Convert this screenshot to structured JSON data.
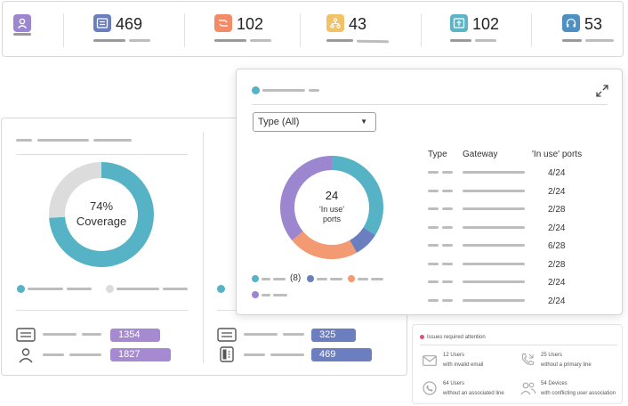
{
  "stats": [
    {
      "icon": "user-icon",
      "value": "",
      "color": "#9b86cf"
    },
    {
      "icon": "id-card-icon",
      "value": "469",
      "color": "#6b7fc0"
    },
    {
      "icon": "routing-icon",
      "value": "102",
      "color": "#f28b66"
    },
    {
      "icon": "network-icon",
      "value": "43",
      "color": "#f2c267"
    },
    {
      "icon": "upload-box-icon",
      "value": "102",
      "color": "#5bb5c7"
    },
    {
      "icon": "headset-icon",
      "value": "53",
      "color": "#4e90c2"
    }
  ],
  "coverage": {
    "percent_label": "74%",
    "label": "Coverage",
    "percent": 74,
    "colors": {
      "covered": "#56b2c5",
      "uncovered": "#dcdcdc"
    }
  },
  "left_pills": [
    {
      "icon": "id-card-icon",
      "value": "1354",
      "color": "#a58ad2"
    },
    {
      "icon": "person-icon",
      "value": "1827",
      "color": "#a58ad2"
    }
  ],
  "right_pills": [
    {
      "icon": "id-card-icon",
      "value": "325",
      "color": "#6b7fc0"
    },
    {
      "icon": "desk-phone-icon",
      "value": "469",
      "color": "#6b7fc0"
    }
  ],
  "popup": {
    "type_select": "Type (All)",
    "donut": {
      "count": "24",
      "line1": "'In use'",
      "line2": "ports",
      "segments": [
        {
          "value": 34,
          "color": "#56b2c5"
        },
        {
          "value": 8,
          "color": "#6b7fc0"
        },
        {
          "value": 22,
          "color": "#f49a72"
        },
        {
          "value": 36,
          "color": "#9b86cf"
        }
      ]
    },
    "legend": [
      {
        "color": "#56b2c5",
        "value": "(8)"
      },
      {
        "color": "#6b7fc0",
        "value": ""
      },
      {
        "color": "#f49a72",
        "value": ""
      },
      {
        "color": "#9b86cf",
        "value": ""
      }
    ],
    "table": {
      "headers": [
        "Type",
        "Gateway",
        "'In use' ports"
      ],
      "rows": [
        "4/24",
        "2/24",
        "2/28",
        "2/24",
        "6/28",
        "2/28",
        "2/24",
        "2/24"
      ]
    }
  },
  "issues": {
    "title": "Issues required attention",
    "items": [
      {
        "icon": "mail-icon",
        "line1": "12 Users",
        "line2": "with invalid email"
      },
      {
        "icon": "phone-call-icon",
        "line1": "25 Users",
        "line2": "without a primary line"
      },
      {
        "icon": "phone-circle-icon",
        "line1": "64 Users",
        "line2": "without an associated line"
      },
      {
        "icon": "users-icon",
        "line1": "54 Devices",
        "line2": "with conflicting user association"
      }
    ]
  }
}
